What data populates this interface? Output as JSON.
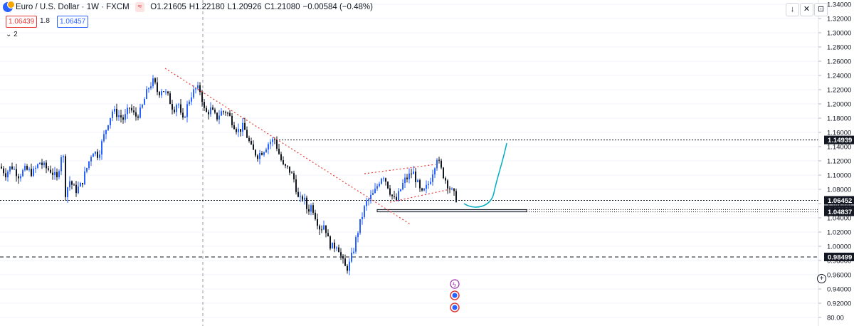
{
  "header": {
    "title": "Euro / U.S. Dollar · 1W · FXCM",
    "tag": "≈",
    "open": "O1.21605",
    "high": "H1.22180",
    "low": "L1.20926",
    "close": "C1.21080",
    "change": "−0.00584 (−0.48%)"
  },
  "quote": {
    "bid": "1.06439",
    "spread": "1.8",
    "ask": "1.06457"
  },
  "indicators_toggle": "⌄ 2",
  "controls": [
    "↓",
    "✕",
    "⊡"
  ],
  "colors": {
    "up": "#2962ff",
    "down": "#131722",
    "trend": "#e53935",
    "projection": "#00acc1"
  },
  "chart_data": {
    "type": "candlestick",
    "symbol": "EURUSD",
    "timeframe": "1W",
    "ylim": [
      0.8,
      1.34
    ],
    "yticks": [
      "1.34000",
      "1.32000",
      "1.30000",
      "1.28000",
      "1.26000",
      "1.24000",
      "1.22000",
      "1.20000",
      "1.18000",
      "1.16000",
      "1.14000",
      "1.12000",
      "1.10000",
      "1.08000",
      "1.06000",
      "1.04000",
      "1.02000",
      "1.00000",
      "0.98000",
      "0.96000",
      "0.94000",
      "0.92000",
      "80.00"
    ],
    "price_levels": [
      {
        "label": "1.14939",
        "value": 1.14939,
        "style": "dotted"
      },
      {
        "label": "1.06452",
        "value": 1.06452,
        "style": "dotted"
      },
      {
        "label": "1.05158",
        "value": 1.05158,
        "style": "box"
      },
      {
        "label": "1.04837",
        "value": 1.04837,
        "style": "box"
      },
      {
        "label": "0.98499",
        "value": 0.98499,
        "style": "dashed"
      }
    ],
    "path": [
      [
        0,
        1.112
      ],
      [
        8,
        1.102
      ],
      [
        16,
        1.113
      ],
      [
        26,
        1.1
      ],
      [
        36,
        1.108
      ],
      [
        46,
        1.103
      ],
      [
        56,
        1.118
      ],
      [
        64,
        1.11
      ],
      [
        72,
        1.106
      ],
      [
        80,
        1.094
      ],
      [
        88,
        1.14
      ],
      [
        92,
        1.075
      ],
      [
        98,
        1.092
      ],
      [
        106,
        1.078
      ],
      [
        114,
        1.086
      ],
      [
        122,
        1.11
      ],
      [
        130,
        1.135
      ],
      [
        138,
        1.128
      ],
      [
        146,
        1.155
      ],
      [
        152,
        1.175
      ],
      [
        158,
        1.19
      ],
      [
        166,
        1.185
      ],
      [
        174,
        1.178
      ],
      [
        182,
        1.195
      ],
      [
        190,
        1.182
      ],
      [
        198,
        1.19
      ],
      [
        204,
        1.21
      ],
      [
        210,
        1.226
      ],
      [
        216,
        1.232
      ],
      [
        222,
        1.215
      ],
      [
        228,
        1.222
      ],
      [
        236,
        1.21
      ],
      [
        244,
        1.192
      ],
      [
        250,
        1.205
      ],
      [
        256,
        1.172
      ],
      [
        262,
        1.194
      ],
      [
        268,
        1.212
      ],
      [
        276,
        1.222
      ],
      [
        282,
        1.218
      ],
      [
        288,
        1.186
      ],
      [
        296,
        1.192
      ],
      [
        304,
        1.18
      ],
      [
        310,
        1.188
      ],
      [
        318,
        1.19
      ],
      [
        326,
        1.176
      ],
      [
        334,
        1.162
      ],
      [
        342,
        1.168
      ],
      [
        348,
        1.152
      ],
      [
        354,
        1.135
      ],
      [
        362,
        1.128
      ],
      [
        370,
        1.135
      ],
      [
        378,
        1.146
      ],
      [
        386,
        1.15
      ],
      [
        392,
        1.13
      ],
      [
        398,
        1.112
      ],
      [
        406,
        1.108
      ],
      [
        414,
        1.092
      ],
      [
        420,
        1.062
      ],
      [
        426,
        1.07
      ],
      [
        432,
        1.05
      ],
      [
        438,
        1.058
      ],
      [
        444,
        1.04
      ],
      [
        450,
        1.024
      ],
      [
        456,
        1.032
      ],
      [
        462,
        1.005
      ],
      [
        468,
        0.998
      ],
      [
        474,
        1.004
      ],
      [
        480,
        0.982
      ],
      [
        486,
        0.968
      ],
      [
        490,
        0.972
      ],
      [
        496,
        0.992
      ],
      [
        502,
        1.018
      ],
      [
        508,
        1.04
      ],
      [
        514,
        1.06
      ],
      [
        520,
        1.068
      ],
      [
        526,
        1.075
      ],
      [
        532,
        1.09
      ],
      [
        538,
        1.102
      ],
      [
        544,
        1.088
      ],
      [
        550,
        1.072
      ],
      [
        556,
        1.062
      ],
      [
        562,
        1.078
      ],
      [
        568,
        1.092
      ],
      [
        574,
        1.098
      ],
      [
        580,
        1.105
      ],
      [
        586,
        1.09
      ],
      [
        592,
        1.072
      ],
      [
        598,
        1.08
      ],
      [
        604,
        1.092
      ],
      [
        610,
        1.112
      ],
      [
        614,
        1.126
      ],
      [
        618,
        1.112
      ],
      [
        624,
        1.098
      ],
      [
        630,
        1.085
      ],
      [
        636,
        1.075
      ],
      [
        642,
        1.066
      ]
    ],
    "trendlines": [
      {
        "from": [
          232,
          1.25
        ],
        "to": [
          578,
          1.03
        ],
        "style": "dotted"
      },
      {
        "from": [
          512,
          1.102
        ],
        "to": [
          612,
          1.115
        ],
        "style": "dotted"
      },
      {
        "from": [
          548,
          1.062
        ],
        "to": [
          632,
          1.08
        ],
        "style": "dotted"
      }
    ],
    "projection": {
      "from": [
        652,
        1.06
      ],
      "via": [
        690,
        1.06
      ],
      "to": [
        712,
        1.145
      ]
    }
  }
}
